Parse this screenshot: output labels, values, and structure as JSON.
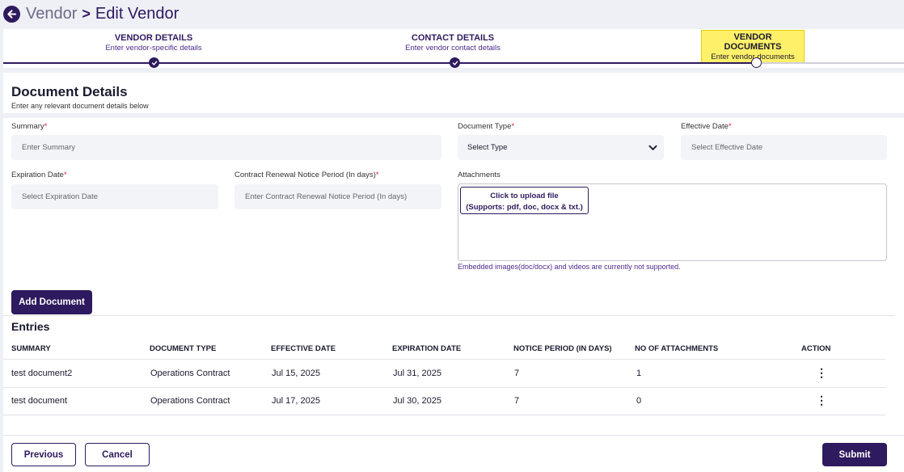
{
  "header": {
    "back_icon": "arrow-left-icon",
    "crumb": "Vendor",
    "separator": ">",
    "current": "Edit Vendor"
  },
  "stepper": {
    "steps": [
      {
        "title": "VENDOR DETAILS",
        "subtitle": "Enter vendor-specific details",
        "state": "done"
      },
      {
        "title": "CONTACT DETAILS",
        "subtitle": "Enter vendor contact details",
        "state": "done"
      },
      {
        "title": "VENDOR DOCUMENTS",
        "subtitle": "Enter vendor documents",
        "state": "active"
      }
    ]
  },
  "section": {
    "title": "Document Details",
    "subtitle": "Enter any relevant document details below"
  },
  "form": {
    "summary_label": "Summary",
    "summary_placeholder": "Enter Summary",
    "doc_type_label": "Document Type",
    "doc_type_value": "Select Type",
    "effective_label": "Effective Date",
    "effective_placeholder": "Select Effective Date",
    "expiration_label": "Expiration Date",
    "expiration_placeholder": "Select Expiration Date",
    "notice_label": "Contract Renewal Notice Period (In days)",
    "notice_placeholder": "Enter Contract Renewal Notice Period (In days)",
    "attachments_label": "Attachments",
    "upload_line1": "Click to upload file",
    "upload_line2": "(Supports: pdf, doc, docx & txt.)",
    "attachments_note": "Embedded images(doc/docx) and videos are currently not supported.",
    "required_mark": "*",
    "add_button": "Add Document"
  },
  "entries": {
    "title": "Entries",
    "columns": [
      "SUMMARY",
      "DOCUMENT TYPE",
      "EFFECTIVE DATE",
      "EXPIRATION DATE",
      "NOTICE PERIOD (IN DAYS)",
      "NO OF ATTACHMENTS",
      "ACTION"
    ],
    "rows": [
      [
        "test document2",
        "Operations Contract",
        "Jul 15, 2025",
        "Jul 31, 2025",
        "7",
        "1",
        "⋮"
      ],
      [
        "test document",
        "Operations Contract",
        "Jul 17, 2025",
        "Jul 30, 2025",
        "7",
        "0",
        "⋮"
      ]
    ]
  },
  "footer": {
    "previous": "Previous",
    "cancel": "Cancel",
    "submit": "Submit"
  },
  "colors": {
    "brand": "#2e1a5e",
    "highlight": "#fff06a",
    "required": "#d0213a"
  }
}
